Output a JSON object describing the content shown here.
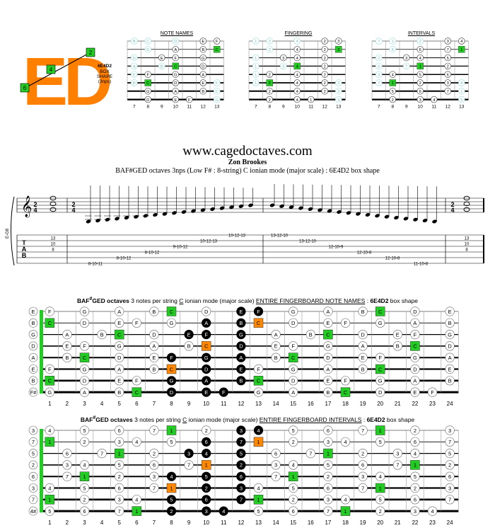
{
  "logo": {
    "text": "ED",
    "notes": [
      "2",
      "4",
      "6"
    ]
  },
  "shape": {
    "line1": "6E4D2",
    "line2": "BOX",
    "line3": "SHAPE",
    "line4": "(3nps)"
  },
  "mini_titles": [
    "NOTE NAMES",
    "FINGERING",
    "INTERVALS"
  ],
  "mini_frets": [
    "7",
    "8",
    "9",
    "10",
    "11",
    "12",
    "13"
  ],
  "site": "www.cagedoctaves.com",
  "author": "Zon Brookes",
  "subtitle": "BAF#GED octaves 3nps (Low F# : 8-string) C ionian mode (major scale) : 6E4D2 box shape",
  "staff": {
    "tuning": "E-G8",
    "tab_letters": [
      "T",
      "A",
      "B"
    ],
    "time_sig": [
      "2",
      "4"
    ],
    "left_tab": [
      "13",
      "10",
      "8"
    ],
    "right_tab": [
      "13",
      "10",
      "8"
    ],
    "asc_tab": [
      "8-10-11",
      "8-10-12",
      "8-10-12",
      "9-10-12",
      "10-12-13",
      "10-12-13"
    ],
    "desc_tab": [
      "13-12-10",
      "13-12-10",
      "12-10-9",
      "12-10-8",
      "12-10-8",
      "11-10-8"
    ]
  },
  "fb1_title": {
    "pre": "BAF",
    "sharp": "#",
    "bold": "GED octaves",
    "mid": " 3 notes per string ",
    "key": "C",
    "mid2": " ionian mode (major scale) ",
    "entire": "ENTIRE FINGERBOARD NOTE NAMES",
    "colon": " : ",
    "shape": "6E4D2",
    "post": " box shape"
  },
  "fb2_title": {
    "pre": "BAF",
    "sharp": "#",
    "bold": "GED octaves",
    "mid": " 3 notes per string ",
    "key": "C",
    "mid2": " ionian mode (major scale) ",
    "entire": "ENTIRE FINGERBOARD INTERVALS",
    "colon": " : ",
    "shape": "6E4D2",
    "post": " box shape"
  },
  "fret_numbers": [
    "1",
    "2",
    "3",
    "4",
    "5",
    "6",
    "7",
    "8",
    "9",
    "10",
    "11",
    "12",
    "13",
    "14",
    "15",
    "16",
    "17",
    "18",
    "19",
    "20",
    "21",
    "22",
    "23",
    "24"
  ],
  "open_notes": [
    "E",
    "B",
    "G",
    "D",
    "A",
    "E",
    "B",
    "F#"
  ],
  "open_intervals": [
    "3",
    "7",
    "5",
    "2",
    "6",
    "3",
    "7",
    "4#"
  ],
  "colors": {
    "root_green": "#22cc22",
    "orange": "#ff8800",
    "logo_orange": "#ff7f00",
    "black_dot": "#000000",
    "circle_fill": "#ffffff"
  }
}
